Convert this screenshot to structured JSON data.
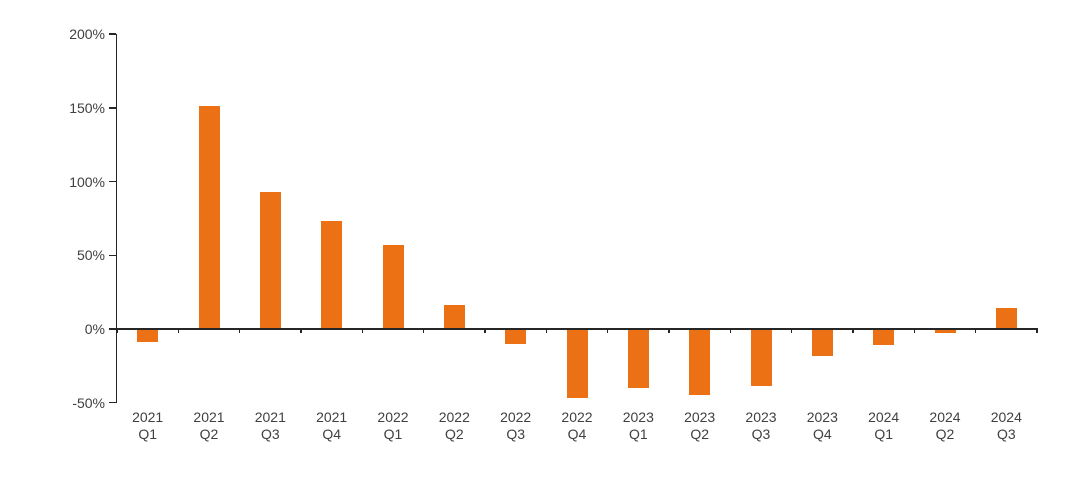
{
  "page": {
    "background_color": "#ffffff"
  },
  "chart_data": {
    "type": "bar",
    "title": "",
    "xlabel": "",
    "ylabel": "",
    "unit": "percent",
    "bar_color": "#EC7014",
    "axis_color": "#262626",
    "label_color": "#404040",
    "grid": false,
    "legend": null,
    "ylim": [
      -50,
      200
    ],
    "y_ticks": [
      200,
      150,
      100,
      50,
      0,
      -50
    ],
    "y_tick_labels": [
      "200%",
      "150%",
      "100%",
      "50%",
      "0%",
      "-50%"
    ],
    "categories": [
      "2021 Q1",
      "2021 Q2",
      "2021 Q3",
      "2021 Q4",
      "2022 Q1",
      "2022 Q2",
      "2022 Q3",
      "2022 Q4",
      "2023 Q1",
      "2023 Q2",
      "2023 Q3",
      "2023 Q4",
      "2024 Q1",
      "2024 Q2",
      "2024 Q3"
    ],
    "values": [
      -9,
      151,
      93,
      73,
      57,
      16,
      -10,
      -47,
      -40,
      -45,
      -39,
      -18,
      -11,
      -3,
      14
    ]
  }
}
